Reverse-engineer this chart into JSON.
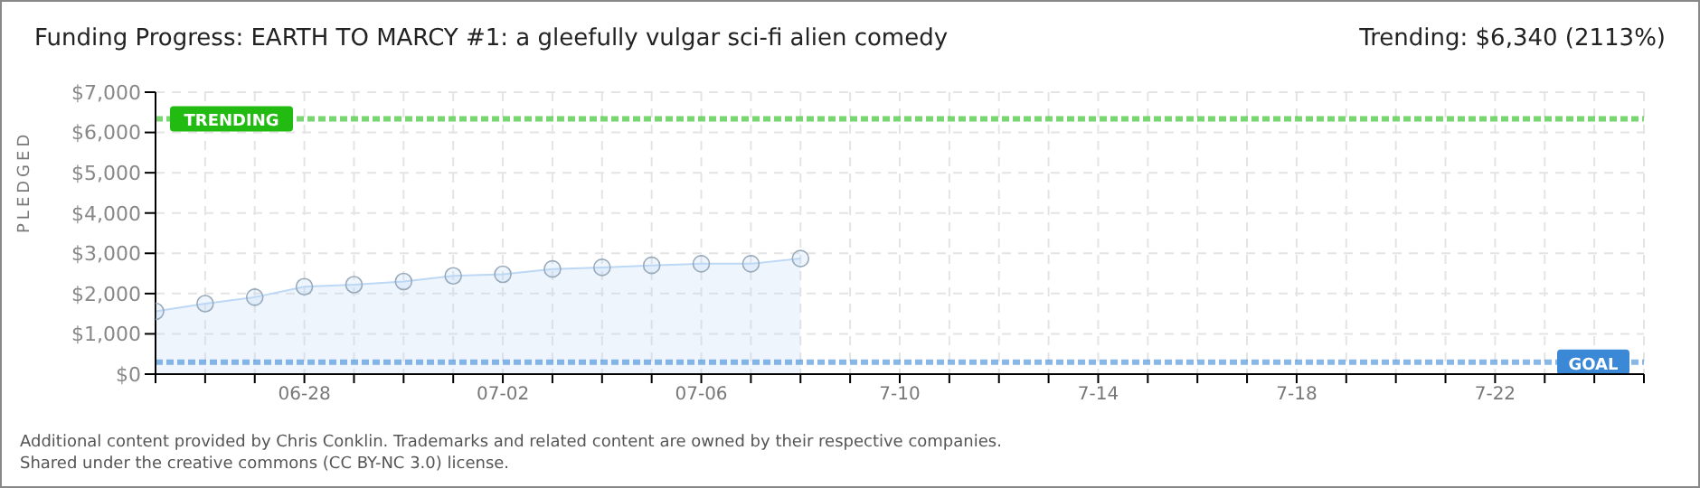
{
  "chart_data": {
    "type": "area",
    "title": "Funding Progress: EARTH TO MARCY #1: a gleefully vulgar sci-fi alien comedy",
    "subtitle": "Trending: $6,340 (2113%)",
    "ylabel": "PLEDGED",
    "annotations": [
      "Additional content provided by Chris Conklin. Trademarks and related content are owned by their respective companies.",
      "Shared under the creative commons (CC BY-NC 3.0) license."
    ],
    "x": [
      "--06-25",
      "--06-26",
      "--06-27",
      "--06-28",
      "--06-29",
      "--06-30",
      "--07-01",
      "--07-02",
      "--07-03",
      "--07-04",
      "--07-05",
      "--07-06",
      "--07-07",
      "--07-08"
    ],
    "series": [
      {
        "color": "#bcd8f5",
        "values": [
          1560,
          1750,
          1910,
          2170,
          2220,
          2300,
          2440,
          2480,
          2610,
          2650,
          2700,
          2740,
          2740,
          2870
        ]
      }
    ],
    "marker": "circle",
    "grid": true,
    "xlim": [
      "--06-25",
      "--07-25"
    ],
    "xticks": [
      {
        "value": "--06-25",
        "label": null
      },
      {
        "value": "--06-26",
        "label": null
      },
      {
        "value": "--06-27",
        "label": null
      },
      {
        "value": "--06-28",
        "label": "06-28"
      },
      {
        "value": "--06-29",
        "label": null
      },
      {
        "value": "--06-30",
        "label": null
      },
      {
        "value": "--07-01",
        "label": null
      },
      {
        "value": "--07-02",
        "label": "07-02"
      },
      {
        "value": "--07-03",
        "label": null
      },
      {
        "value": "--07-04",
        "label": null
      },
      {
        "value": "--07-05",
        "label": null
      },
      {
        "value": "--07-06",
        "label": "07-06"
      },
      {
        "value": "--07-07",
        "label": null
      },
      {
        "value": "--07-08",
        "label": null
      },
      {
        "value": "--07-09",
        "label": null
      },
      {
        "value": "--07-10",
        "label": "7-10"
      },
      {
        "value": "--07-11",
        "label": null
      },
      {
        "value": "--07-12",
        "label": null
      },
      {
        "value": "--07-13",
        "label": null
      },
      {
        "value": "--07-14",
        "label": "7-14"
      },
      {
        "value": "--07-15",
        "label": null
      },
      {
        "value": "--07-16",
        "label": null
      },
      {
        "value": "--07-17",
        "label": null
      },
      {
        "value": "--07-18",
        "label": "7-18"
      },
      {
        "value": "--07-19",
        "label": null
      },
      {
        "value": "--07-20",
        "label": null
      },
      {
        "value": "--07-21",
        "label": null
      },
      {
        "value": "--07-22",
        "label": "7-22"
      },
      {
        "value": "--07-23",
        "label": null
      },
      {
        "value": "--07-24",
        "label": null
      },
      {
        "value": "--07-25",
        "label": null
      }
    ],
    "ylim": [
      0,
      7000
    ],
    "yticks": [
      {
        "value": 0,
        "label": "$0"
      },
      {
        "value": 1000,
        "label": "$1,000"
      },
      {
        "value": 2000,
        "label": "$2,000"
      },
      {
        "value": 3000,
        "label": "$3,000"
      },
      {
        "value": 4000,
        "label": "$4,000"
      },
      {
        "value": 5000,
        "label": "$5,000"
      },
      {
        "value": 6000,
        "label": "$6,000"
      },
      {
        "value": 7000,
        "label": "$7,000"
      }
    ],
    "ref_lines": [
      {
        "axis": "y",
        "value": 6340,
        "label": "TRENDING",
        "color": "#22bb11",
        "line_style": "dotted"
      },
      {
        "axis": "y",
        "value": 300,
        "label": "GOAL",
        "color": "#3a88d6",
        "line_style": "dotted"
      }
    ]
  }
}
